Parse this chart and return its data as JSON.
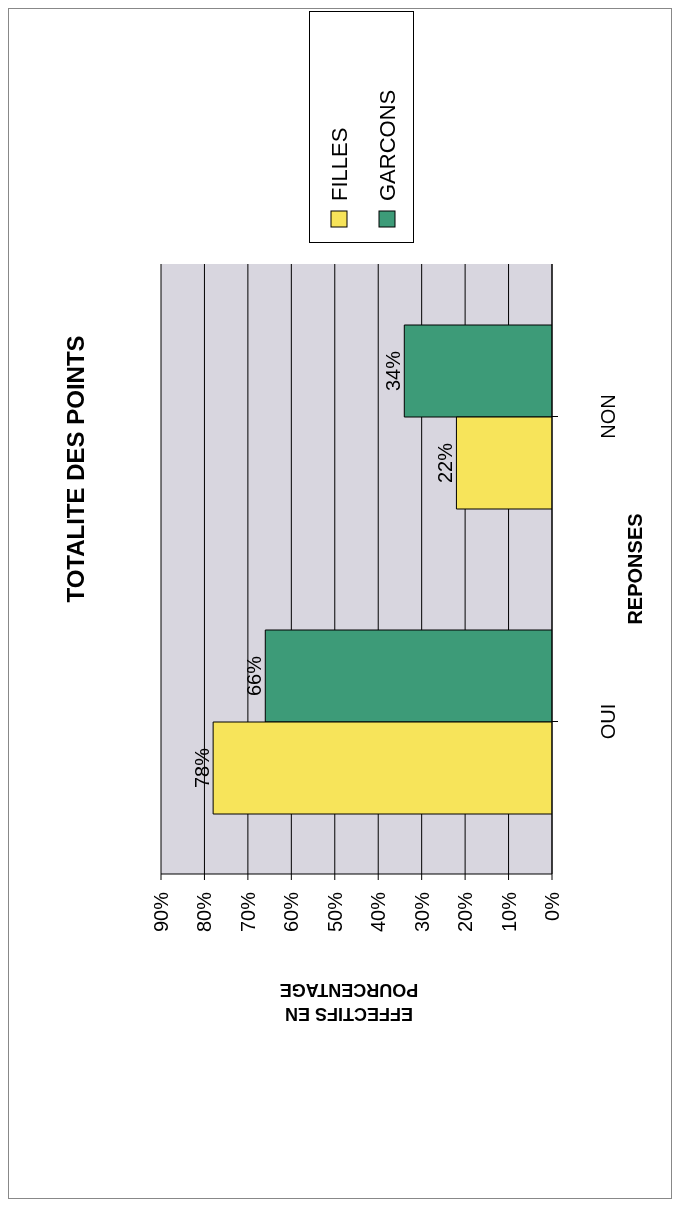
{
  "chart_data": {
    "type": "bar",
    "orientation": "horizontal",
    "title": "TOTALITE DES POINTS",
    "xlabel": "EFFECTIFS EN POURCENTAGE",
    "ylabel": "REPONSES",
    "categories": [
      "NON",
      "OUI"
    ],
    "series": [
      {
        "name": "FILLES",
        "color": "#f7e45a",
        "values": [
          22,
          78
        ],
        "value_labels": [
          "22%",
          "78%"
        ]
      },
      {
        "name": "GARCONS",
        "color": "#3d9b78",
        "values": [
          34,
          66
        ],
        "value_labels": [
          "34%",
          "66%"
        ]
      }
    ],
    "xlim": [
      90,
      0
    ],
    "xticks": [
      {
        "value": 90,
        "label": "90%"
      },
      {
        "value": 80,
        "label": "80%"
      },
      {
        "value": 70,
        "label": "70%"
      },
      {
        "value": 60,
        "label": "60%"
      },
      {
        "value": 50,
        "label": "50%"
      },
      {
        "value": 40,
        "label": "40%"
      },
      {
        "value": 30,
        "label": "30%"
      },
      {
        "value": 20,
        "label": "20%"
      },
      {
        "value": 10,
        "label": "10%"
      },
      {
        "value": 0,
        "label": "0%"
      }
    ],
    "grid": "x",
    "legend": "top"
  }
}
